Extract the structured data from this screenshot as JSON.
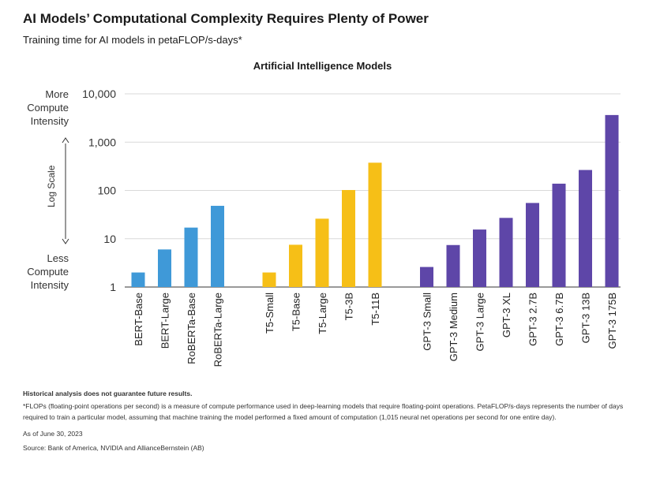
{
  "header": {
    "title": "AI Models’ Computational Complexity Requires Plenty of Power",
    "subtitle": "Training time for AI models in petaFLOP/s-days*"
  },
  "chart_heading": "Artificial Intelligence Models",
  "axis": {
    "top_label": "More Compute Intensity",
    "bottom_label": "Less Compute Intensity",
    "scale_label": "Log Scale"
  },
  "footer": {
    "note": "Historical analysis does not guarantee future results.",
    "flops": "*FLOPs (floating-point operations per second) is a measure of compute performance used in deep-learning models that require floating-point operations. PetaFLOP/s-days represents the number of days required to train a particular model, assuming that machine training the model performed a fixed amount of computation (1,015 neural net operations per second for one entire day).",
    "date": "As of June 30, 2023",
    "source": "Source: Bank of America, NVIDIA and AllianceBernstein (AB)"
  },
  "colors": {
    "bert": "#3f99d8",
    "t5": "#f6bf17",
    "gpt": "#5e46a8",
    "grid": "#d9d9d9",
    "axis": "#333333"
  },
  "chart_data": {
    "type": "bar",
    "title": "Artificial Intelligence Models",
    "ylabel": "Log Scale",
    "yscale": "log",
    "ylim": [
      1,
      10000
    ],
    "yticks": [
      1,
      10,
      100,
      1000,
      10000
    ],
    "ytick_labels": [
      "1",
      "10",
      "100",
      "1,000",
      "10,000"
    ],
    "grid": true,
    "groups": [
      {
        "name": "BERT",
        "color": "#3f99d8",
        "categories": [
          "BERT-Base",
          "BERT-Large",
          "RoBERTa-Base",
          "RoBERTa-Large"
        ],
        "values": [
          2.0,
          6.0,
          17.0,
          48.0
        ]
      },
      {
        "name": "T5",
        "color": "#f6bf17",
        "categories": [
          "T5-Small",
          "T5-Base",
          "T5-Large",
          "T5-3B",
          "T5-11B"
        ],
        "values": [
          2.0,
          7.5,
          26.0,
          102.0,
          375.0
        ]
      },
      {
        "name": "GPT-3",
        "color": "#5e46a8",
        "categories": [
          "GPT-3 Small",
          "GPT-3 Medium",
          "GPT-3 Large",
          "GPT-3 XL",
          "GPT-3 2.7B",
          "GPT-3 6.7B",
          "GPT-3 13B",
          "GPT-3 175B"
        ],
        "values": [
          2.6,
          7.4,
          15.5,
          27.0,
          55.0,
          138.0,
          265.0,
          3640.0
        ]
      }
    ]
  }
}
